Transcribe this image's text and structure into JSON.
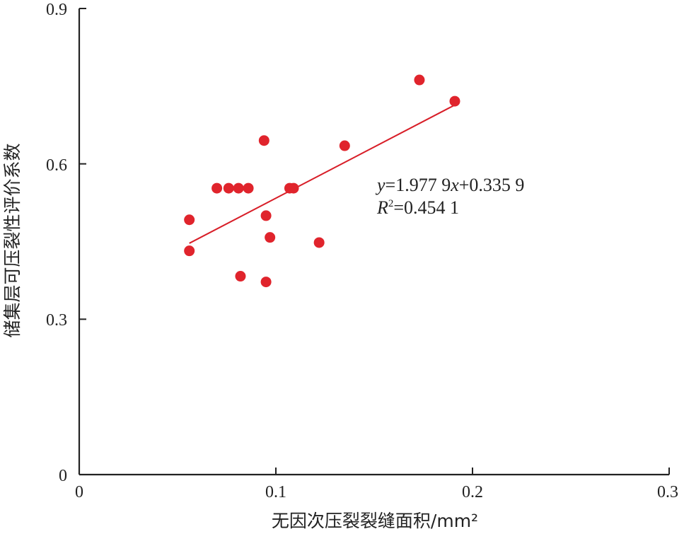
{
  "chart_data": {
    "type": "scatter",
    "xlabel": "无因次压裂裂缝面积/mm²",
    "ylabel": "储集层可压裂性评价系数",
    "xlim": [
      0,
      0.3
    ],
    "ylim": [
      0,
      0.9
    ],
    "xticks": [
      "0",
      "0.1",
      "0.2",
      "0.3"
    ],
    "yticks": [
      "0",
      "0.3",
      "0.6",
      "0.9"
    ],
    "points": [
      {
        "x": 0.056,
        "y": 0.492
      },
      {
        "x": 0.056,
        "y": 0.432
      },
      {
        "x": 0.07,
        "y": 0.553
      },
      {
        "x": 0.076,
        "y": 0.553
      },
      {
        "x": 0.081,
        "y": 0.553
      },
      {
        "x": 0.086,
        "y": 0.553
      },
      {
        "x": 0.082,
        "y": 0.383
      },
      {
        "x": 0.094,
        "y": 0.645
      },
      {
        "x": 0.095,
        "y": 0.5
      },
      {
        "x": 0.095,
        "y": 0.372
      },
      {
        "x": 0.097,
        "y": 0.458
      },
      {
        "x": 0.107,
        "y": 0.553
      },
      {
        "x": 0.109,
        "y": 0.553
      },
      {
        "x": 0.122,
        "y": 0.448
      },
      {
        "x": 0.135,
        "y": 0.635
      },
      {
        "x": 0.173,
        "y": 0.762
      },
      {
        "x": 0.191,
        "y": 0.721
      }
    ],
    "fit": {
      "slope": 1.9779,
      "intercept": 0.3359,
      "x_range": [
        0.056,
        0.191
      ]
    },
    "equation": {
      "y_var": "y",
      "eq_rest": "=1.977 9",
      "x_var": "x",
      "eq_tail": "+0.335 9"
    },
    "r2": {
      "r_var": "R",
      "sup": "2",
      "value": "=0.454 1"
    },
    "colors": {
      "marker": "#e0242c",
      "fit_line": "#d81e28",
      "axis": "#222222"
    }
  }
}
